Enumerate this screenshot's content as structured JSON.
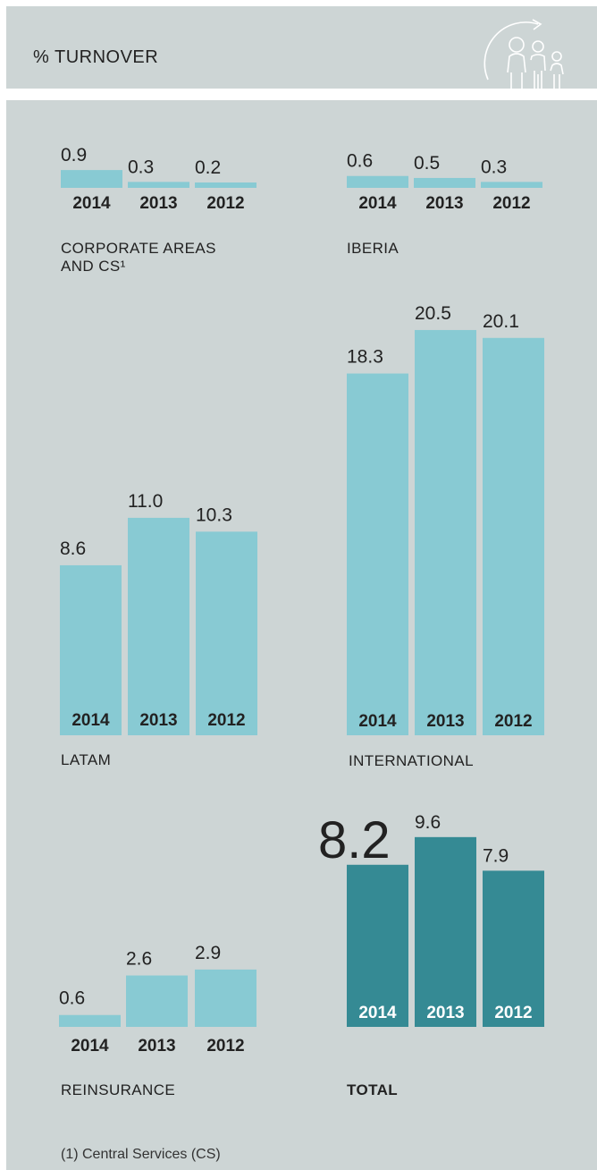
{
  "header": {
    "title": "% TURNOVER",
    "icon": "family-people-icon"
  },
  "footnote": "(1) Central Services (CS)",
  "colors": {
    "light_bar": "#88cad3",
    "dark_bar": "#358a94",
    "background": "#cdd5d5"
  },
  "chart_data": [
    {
      "type": "bar",
      "label": "CORPORATE AREAS\nAND CS¹",
      "categories": [
        "2014",
        "2013",
        "2012"
      ],
      "values": [
        0.9,
        0.3,
        0.2
      ],
      "value_labels": [
        "0.9",
        "0.3",
        "0.2"
      ]
    },
    {
      "type": "bar",
      "label": "IBERIA",
      "categories": [
        "2014",
        "2013",
        "2012"
      ],
      "values": [
        0.6,
        0.5,
        0.3
      ],
      "value_labels": [
        "0.6",
        "0.5",
        "0.3"
      ]
    },
    {
      "type": "bar",
      "label": "LATAM",
      "categories": [
        "2014",
        "2013",
        "2012"
      ],
      "values": [
        8.6,
        11.0,
        10.3
      ],
      "value_labels": [
        "8.6",
        "11.0",
        "10.3"
      ]
    },
    {
      "type": "bar",
      "label": "INTERNATIONAL",
      "categories": [
        "2014",
        "2013",
        "2012"
      ],
      "values": [
        18.3,
        20.5,
        20.1
      ],
      "value_labels": [
        "18.3",
        "20.5",
        "20.1"
      ]
    },
    {
      "type": "bar",
      "label": "REINSURANCE",
      "categories": [
        "2014",
        "2013",
        "2012"
      ],
      "values": [
        0.6,
        2.6,
        2.9
      ],
      "value_labels": [
        "0.6",
        "2.6",
        "2.9"
      ]
    },
    {
      "type": "bar",
      "label": "TOTAL",
      "categories": [
        "2014",
        "2013",
        "2012"
      ],
      "values": [
        8.2,
        9.6,
        7.9
      ],
      "value_labels": [
        "8.2",
        "9.6",
        "7.9"
      ]
    }
  ]
}
